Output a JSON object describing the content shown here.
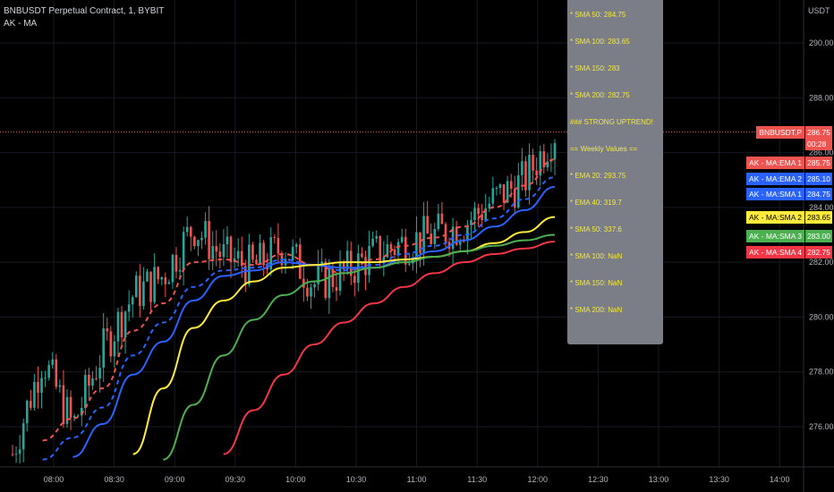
{
  "header": {
    "title": "BNBUSDT Perpetual Contract, 1, BYBIT",
    "indicator": "AK - MA"
  },
  "currency": "USDT",
  "colors": {
    "up": "#26a69a",
    "down": "#ef5350",
    "ema1": "#ef5350",
    "ema2": "#2962ff",
    "sma1": "#2962ff",
    "sma2": "#ffeb3b",
    "sma3": "#4caf50",
    "sma4": "#f23645"
  },
  "popup": {
    "lines": [
      "* SMA 50: 284.75",
      "* SMA 100: 283.65",
      "* SMA 150: 283",
      "* SMA 200: 282.75",
      "### STRONG UPTREND!",
      "== Weekly Values ==",
      "* EMA 20: 293.75",
      "* EMA 40: 319.7",
      "* SMA 50: 337.6",
      "* SMA 100: NaN",
      "* SMA 150: NaN",
      "* SMA 200: NaN"
    ]
  },
  "price_axis": {
    "ticks": [
      "290.00",
      "288.00",
      "286.00",
      "284.00",
      "282.00",
      "280.00",
      "278.00",
      "276.00"
    ],
    "tick_values": [
      290,
      288,
      286,
      284,
      282,
      280,
      278,
      276
    ]
  },
  "time_axis": {
    "ticks": [
      "08:00",
      "08:30",
      "09:00",
      "09:30",
      "10:00",
      "10:30",
      "11:00",
      "11:30",
      "12:00",
      "12:30",
      "13:00",
      "13:30",
      "14:00"
    ]
  },
  "current_price": {
    "symbol": "BNBUSDT.P",
    "value": "286.75",
    "countdown": "00:28",
    "price": 286.75
  },
  "ma_labels": [
    {
      "name": "AK - MA:EMA 1",
      "value": "285.75",
      "price": 285.75,
      "color": "#ef5350",
      "text": "#fff"
    },
    {
      "name": "AK - MA:EMA 2",
      "value": "285.10",
      "price": 285.1,
      "color": "#2962ff",
      "text": "#fff"
    },
    {
      "name": "AK - MA:SMA 1",
      "value": "284.75",
      "price": 284.75,
      "color": "#2962ff",
      "text": "#fff"
    },
    {
      "name": "AK - MA:SMA 2",
      "value": "283.65",
      "price": 283.65,
      "color": "#ffeb3b",
      "text": "#000"
    },
    {
      "name": "AK - MA:SMA 3",
      "value": "283.00",
      "price": 283.0,
      "color": "#4caf50",
      "text": "#fff"
    },
    {
      "name": "AK - MA:SMA 4",
      "value": "282.75",
      "price": 282.75,
      "color": "#f23645",
      "text": "#fff"
    }
  ],
  "chart_data": {
    "type": "line",
    "ylim": [
      274.8,
      291.5
    ],
    "x": [
      "07:45",
      "08:00",
      "08:15",
      "08:30",
      "08:45",
      "09:00",
      "09:15",
      "09:30",
      "09:45",
      "10:00",
      "10:15",
      "10:30",
      "10:45",
      "11:00",
      "11:15",
      "11:30",
      "11:45",
      "12:00",
      "12:08"
    ],
    "close": [
      275,
      278.5,
      276,
      278.8,
      280.8,
      281.5,
      283.3,
      282.2,
      281.8,
      282.6,
      281.2,
      281.6,
      282.3,
      282.7,
      283,
      283.4,
      284.3,
      285,
      286.75
    ],
    "series": [
      {
        "name": "AK - MA:EMA 1",
        "color": "#ef5350",
        "dashed": true,
        "values": [
          null,
          275.5,
          276.3,
          277.4,
          279.5,
          280.5,
          282.0,
          282.1,
          281.9,
          282.3,
          281.9,
          281.6,
          282.1,
          282.6,
          282.9,
          283.3,
          284.0,
          284.8,
          285.75
        ]
      },
      {
        "name": "AK - MA:EMA 2",
        "color": "#2962ff",
        "dashed": true,
        "values": [
          null,
          274.8,
          275.6,
          276.7,
          278.6,
          279.8,
          281.1,
          281.7,
          281.8,
          282.1,
          281.9,
          281.7,
          281.9,
          282.3,
          282.6,
          283.0,
          283.6,
          284.3,
          285.1
        ]
      },
      {
        "name": "AK - MA:SMA 1",
        "color": "#2962ff",
        "dashed": false,
        "values": [
          null,
          null,
          274.9,
          276.1,
          277.9,
          279.1,
          280.6,
          281.5,
          281.7,
          282.0,
          281.9,
          281.8,
          281.8,
          282.1,
          282.4,
          282.8,
          283.3,
          283.9,
          284.75
        ]
      },
      {
        "name": "AK - MA:SMA 2",
        "color": "#ffeb3b",
        "dashed": false,
        "values": [
          null,
          null,
          null,
          null,
          275.0,
          277.4,
          279.6,
          280.6,
          281.3,
          281.8,
          281.9,
          282.0,
          282.0,
          282.1,
          282.2,
          282.4,
          282.7,
          283.1,
          283.65
        ]
      },
      {
        "name": "AK - MA:SMA 3",
        "color": "#4caf50",
        "dashed": false,
        "values": [
          null,
          null,
          null,
          null,
          null,
          274.8,
          276.8,
          278.6,
          279.9,
          280.8,
          281.3,
          281.6,
          281.8,
          282.0,
          282.2,
          282.4,
          282.6,
          282.8,
          283.0
        ]
      },
      {
        "name": "AK - MA:SMA 4",
        "color": "#f23645",
        "dashed": false,
        "values": [
          null,
          null,
          null,
          null,
          null,
          null,
          null,
          275.0,
          276.6,
          277.9,
          279.0,
          279.8,
          280.5,
          281.1,
          281.6,
          282.0,
          282.3,
          282.5,
          282.75
        ]
      }
    ]
  }
}
